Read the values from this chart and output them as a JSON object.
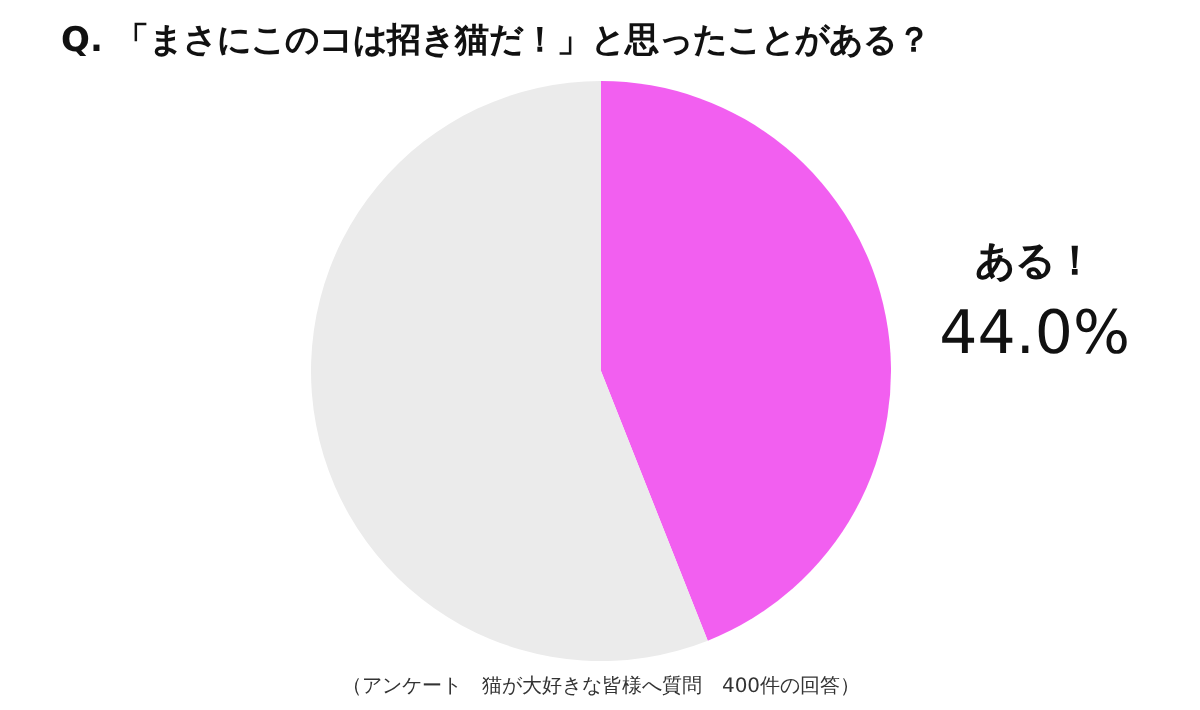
{
  "chart_data": {
    "type": "pie",
    "title": "Q. 「まさにこのコは招き猫だ！」と思ったことがある？",
    "categories": [
      "ある！",
      null
    ],
    "values": [
      44.0,
      56.0
    ],
    "colors": [
      "#f25ff0",
      "#ebebeb"
    ],
    "value_labels": [
      "44.0%",
      null
    ],
    "annotations": [
      "（アンケート　猫が大好きな皆様へ質問　400件の回答）"
    ]
  }
}
